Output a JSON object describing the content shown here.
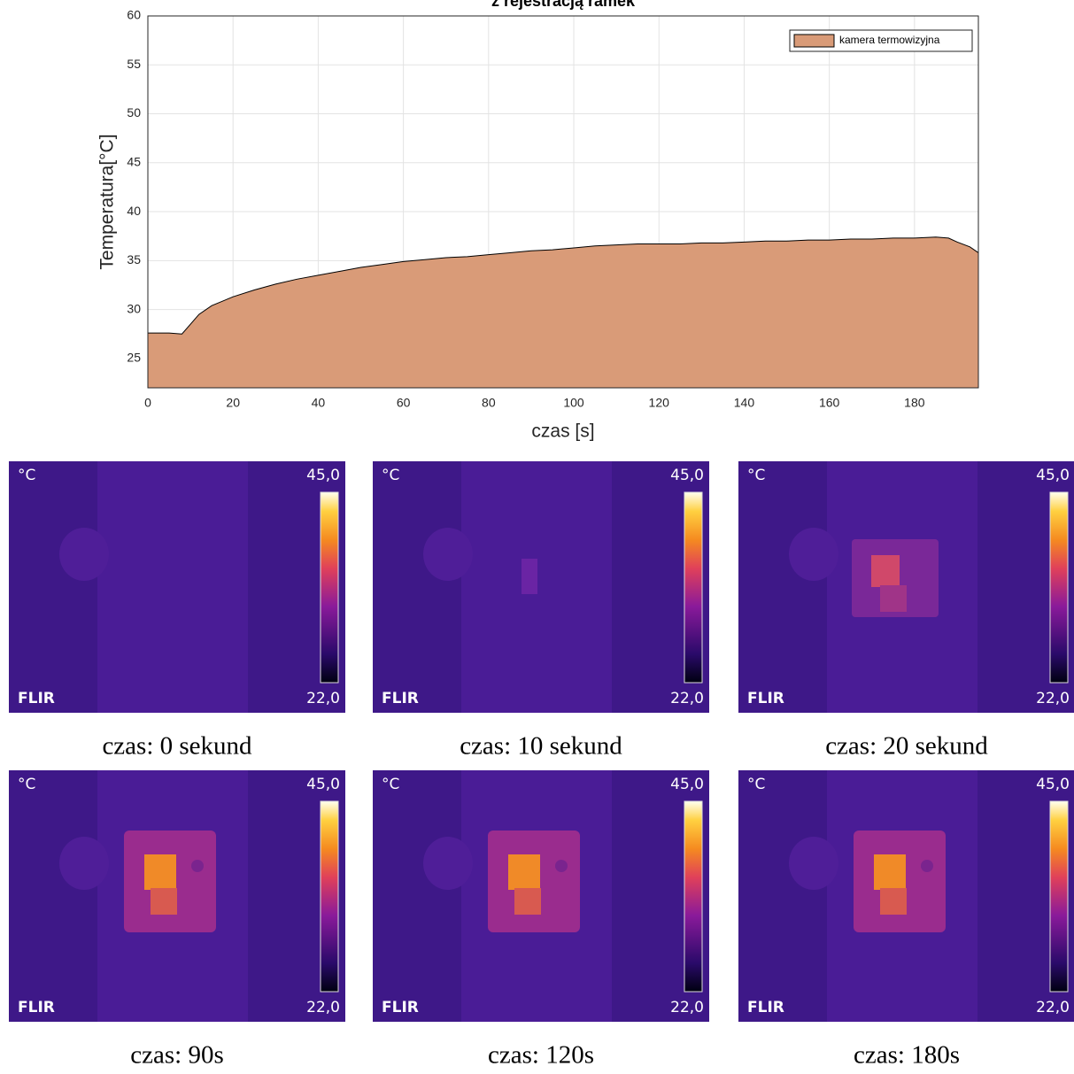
{
  "chart_data": {
    "type": "area",
    "title": "z rejestracją ramek",
    "xlabel": "czas [s]",
    "ylabel": "Temperatura[°C]",
    "x": [
      0,
      5,
      8,
      10,
      12,
      15,
      20,
      25,
      30,
      35,
      40,
      45,
      50,
      55,
      60,
      65,
      70,
      75,
      80,
      85,
      90,
      95,
      100,
      105,
      110,
      115,
      120,
      125,
      130,
      135,
      140,
      145,
      150,
      155,
      160,
      165,
      170,
      175,
      180,
      185,
      188,
      190,
      193,
      195
    ],
    "series": [
      {
        "name": "kamera termowizyjna",
        "color": "#d99b78",
        "values": [
          27.6,
          27.6,
          27.5,
          28.5,
          29.5,
          30.4,
          31.3,
          32.0,
          32.6,
          33.1,
          33.5,
          33.9,
          34.3,
          34.6,
          34.9,
          35.1,
          35.3,
          35.4,
          35.6,
          35.8,
          36.0,
          36.1,
          36.3,
          36.5,
          36.6,
          36.7,
          36.7,
          36.7,
          36.8,
          36.8,
          36.9,
          37.0,
          37.0,
          37.1,
          37.1,
          37.2,
          37.2,
          37.3,
          37.3,
          37.4,
          37.3,
          36.9,
          36.4,
          35.8
        ]
      }
    ],
    "xlim": [
      0,
      195
    ],
    "ylim": [
      22,
      60
    ],
    "xticks": [
      0,
      20,
      40,
      60,
      80,
      100,
      120,
      140,
      160,
      180
    ],
    "yticks": [
      25,
      30,
      35,
      40,
      45,
      50,
      55,
      60
    ],
    "grid": true,
    "legend": "top-right"
  },
  "thermal_images": [
    {
      "unit": "°C",
      "max": "45,0",
      "min": "22,0",
      "logo": "FLIR",
      "caption": "czas: 0 sekund"
    },
    {
      "unit": "°C",
      "max": "45,0",
      "min": "22,0",
      "logo": "FLIR",
      "caption": "czas: 10 sekund"
    },
    {
      "unit": "°C",
      "max": "45,0",
      "min": "22,0",
      "logo": "FLIR",
      "caption": "czas: 20 sekund"
    },
    {
      "unit": "°C",
      "max": "45,0",
      "min": "22,0",
      "logo": "FLIR",
      "caption": "czas: 90s"
    },
    {
      "unit": "°C",
      "max": "45,0",
      "min": "22,0",
      "logo": "FLIR",
      "caption": "czas: 120s"
    },
    {
      "unit": "°C",
      "max": "45,0",
      "min": "22,0",
      "logo": "FLIR",
      "caption": "czas: 180s"
    }
  ]
}
